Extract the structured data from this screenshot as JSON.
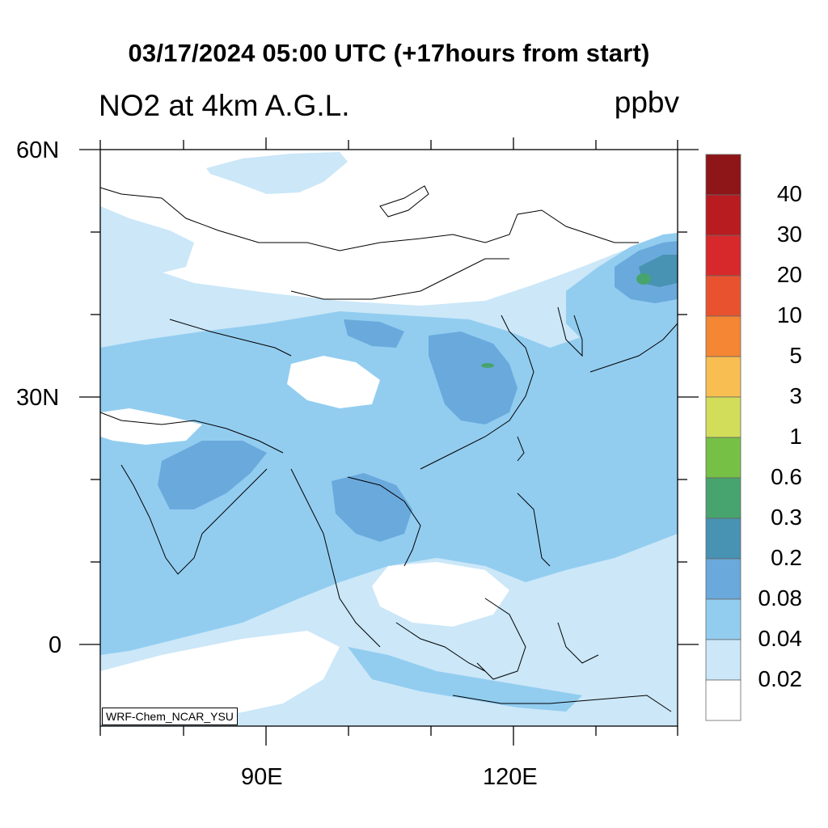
{
  "title": "03/17/2024 05:00 UTC (+17hours from start)",
  "subtitle": "NO2 at 4km A.G.L.",
  "units": "ppbv",
  "credit": "WRF-Chem_NCAR_YSU",
  "lat_labels": [
    "60N",
    "30N",
    "0"
  ],
  "lon_labels": [
    "90E",
    "120E"
  ],
  "colorbar": {
    "labels": [
      "40",
      "30",
      "20",
      "10",
      "5",
      "3",
      "1",
      "0.6",
      "0.3",
      "0.2",
      "0.08",
      "0.04",
      "0.02"
    ],
    "colors_top_to_bottom": [
      "#8e1518",
      "#b81c20",
      "#d7292c",
      "#e8522f",
      "#f58634",
      "#f8be52",
      "#d2dd5a",
      "#76c046",
      "#48a46e",
      "#4892b3",
      "#6aa9dc",
      "#92cdf0",
      "#cbe7f8",
      "#ffffff"
    ]
  },
  "palette": {
    "shade_low": "#cbe7f8",
    "shade_mid": "#92cdf0",
    "shade_high": "#6aa9dc",
    "shade_peak": "#4892b3",
    "shade_max": "#48a46e",
    "coastline": "#000000"
  }
}
